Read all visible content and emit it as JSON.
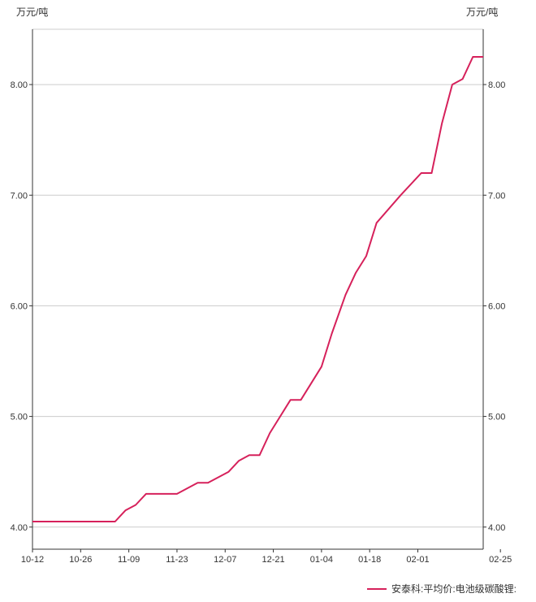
{
  "chart_data": {
    "type": "line",
    "y_unit_left": "万元/吨",
    "y_unit_right": "万元/吨",
    "x_tick_labels": [
      "10-12",
      "10-26",
      "11-09",
      "11-23",
      "12-07",
      "12-21",
      "01-04",
      "01-18",
      "02-01",
      "02-25"
    ],
    "y_tick_labels": [
      "4.00",
      "5.00",
      "6.00",
      "7.00",
      "8.00"
    ],
    "ylim": [
      3.8,
      8.5
    ],
    "grid": true,
    "legend_position": "bottom-right",
    "series": [
      {
        "name": "安泰科:平均价:电池级碳酸锂:",
        "color": "#d6215b",
        "points": [
          [
            "10-12",
            4.05
          ],
          [
            "10-19",
            4.05
          ],
          [
            "10-26",
            4.05
          ],
          [
            "11-02",
            4.05
          ],
          [
            "11-05",
            4.05
          ],
          [
            "11-08",
            4.15
          ],
          [
            "11-11",
            4.2
          ],
          [
            "11-14",
            4.3
          ],
          [
            "11-17",
            4.3
          ],
          [
            "11-20",
            4.3
          ],
          [
            "11-23",
            4.3
          ],
          [
            "11-29",
            4.4
          ],
          [
            "12-02",
            4.4
          ],
          [
            "12-08",
            4.5
          ],
          [
            "12-11",
            4.6
          ],
          [
            "12-14",
            4.65
          ],
          [
            "12-17",
            4.65
          ],
          [
            "12-20",
            4.85
          ],
          [
            "12-26",
            5.15
          ],
          [
            "12-29",
            5.15
          ],
          [
            "01-04",
            5.45
          ],
          [
            "01-07",
            5.75
          ],
          [
            "01-11",
            6.1
          ],
          [
            "01-14",
            6.3
          ],
          [
            "01-17",
            6.45
          ],
          [
            "01-20",
            6.75
          ],
          [
            "01-27",
            7.0
          ],
          [
            "02-02",
            7.2
          ],
          [
            "02-05",
            7.2
          ],
          [
            "02-08",
            7.65
          ],
          [
            "02-11",
            8.0
          ],
          [
            "02-14",
            8.05
          ],
          [
            "02-17",
            8.25
          ],
          [
            "02-20",
            8.25
          ]
        ]
      }
    ]
  }
}
